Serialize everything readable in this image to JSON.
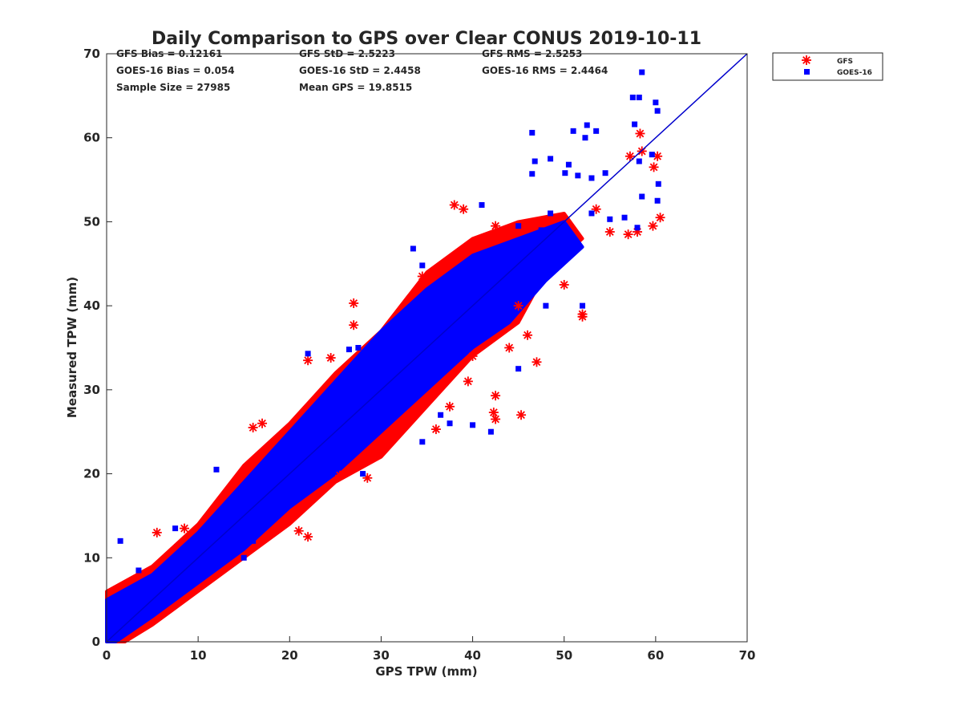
{
  "chart_data": {
    "type": "scatter",
    "title": "Daily Comparison to GPS over Clear CONUS 2019-10-11",
    "xlabel": "GPS TPW (mm)",
    "ylabel": "Measured TPW (mm)",
    "xlim": [
      0,
      70
    ],
    "ylim": [
      0,
      70
    ],
    "xticks": [
      "0",
      "10",
      "20",
      "30",
      "40",
      "50",
      "60",
      "70"
    ],
    "yticks": [
      "0",
      "10",
      "20",
      "30",
      "40",
      "50",
      "60",
      "70"
    ],
    "grid": false,
    "legend_placement": "outside-top-right",
    "stats": [
      [
        "GFS Bias = 0.12161",
        "GFS StD = 2.5223",
        "GFS RMS = 2.5253"
      ],
      [
        "GOES-16 Bias = 0.054",
        "GOES-16 StD = 2.4458",
        "GOES-16 RMS = 2.4464"
      ],
      [
        "Sample Size = 27985",
        "Mean GPS = 19.8515"
      ]
    ],
    "reference_line": {
      "name": "1:1 line",
      "x": [
        0,
        70
      ],
      "y": [
        0,
        70
      ],
      "color": "#0000cc"
    },
    "series": [
      {
        "name": "GFS",
        "marker": "asterisk",
        "color": "#ff0000",
        "cloud_envelope": [
          [
            0,
            0
          ],
          [
            0,
            6
          ],
          [
            5,
            9
          ],
          [
            10,
            14
          ],
          [
            15,
            21
          ],
          [
            20,
            26
          ],
          [
            25,
            32
          ],
          [
            30,
            37
          ],
          [
            35,
            44
          ],
          [
            40,
            48
          ],
          [
            45,
            50
          ],
          [
            50,
            51
          ],
          [
            52,
            48
          ],
          [
            48,
            44
          ],
          [
            45,
            38
          ],
          [
            40,
            34
          ],
          [
            35,
            28
          ],
          [
            30,
            22
          ],
          [
            25,
            19
          ],
          [
            20,
            14
          ],
          [
            15,
            10
          ],
          [
            10,
            6
          ],
          [
            5,
            2
          ],
          [
            2,
            0
          ]
        ],
        "points": [
          [
            27,
            40.3
          ],
          [
            27,
            37.7
          ],
          [
            45.3,
            27
          ],
          [
            52,
            39
          ],
          [
            52,
            38.7
          ],
          [
            58.3,
            60.5
          ],
          [
            57.2,
            57.8
          ],
          [
            58.5,
            58.4
          ],
          [
            60.2,
            57.8
          ],
          [
            59.8,
            56.5
          ],
          [
            60.5,
            50.5
          ],
          [
            59.7,
            49.5
          ],
          [
            57,
            48.5
          ],
          [
            58,
            48.8
          ],
          [
            55,
            48.8
          ],
          [
            53.5,
            51.5
          ],
          [
            50,
            42.5
          ],
          [
            46,
            36.5
          ],
          [
            42.5,
            26.5
          ],
          [
            42.3,
            27.3
          ],
          [
            36,
            25.3
          ],
          [
            42.5,
            29.3
          ],
          [
            37.5,
            28
          ],
          [
            39.5,
            31
          ],
          [
            22,
            12.5
          ],
          [
            21,
            13.2
          ],
          [
            25.5,
            19.8
          ],
          [
            28.5,
            19.5
          ],
          [
            16,
            25.5
          ],
          [
            17,
            26
          ],
          [
            22,
            33.5
          ],
          [
            24.5,
            33.8
          ],
          [
            38,
            52
          ],
          [
            39,
            51.5
          ],
          [
            42.5,
            49.5
          ],
          [
            34.5,
            43.5
          ],
          [
            36.5,
            44.5
          ],
          [
            5.5,
            13
          ],
          [
            8.5,
            13.5
          ],
          [
            40,
            34
          ],
          [
            45,
            40
          ],
          [
            47,
            33.3
          ],
          [
            44,
            35
          ]
        ]
      },
      {
        "name": "GOES-16",
        "marker": "square",
        "color": "#0000ff",
        "cloud_envelope": [
          [
            0,
            0
          ],
          [
            0,
            5
          ],
          [
            5,
            8
          ],
          [
            10,
            13
          ],
          [
            15,
            19
          ],
          [
            20,
            25
          ],
          [
            25,
            31
          ],
          [
            30,
            37
          ],
          [
            35,
            42
          ],
          [
            40,
            46
          ],
          [
            45,
            48
          ],
          [
            50,
            50
          ],
          [
            52,
            47
          ],
          [
            48,
            43
          ],
          [
            44,
            38
          ],
          [
            40,
            35
          ],
          [
            35,
            30
          ],
          [
            30,
            25
          ],
          [
            25,
            20
          ],
          [
            20,
            16
          ],
          [
            15,
            11
          ],
          [
            10,
            7
          ],
          [
            5,
            3
          ],
          [
            1,
            0
          ]
        ],
        "points": [
          [
            46.5,
            60.6
          ],
          [
            51,
            60.8
          ],
          [
            52.5,
            61.5
          ],
          [
            53.5,
            60.8
          ],
          [
            52.3,
            60
          ],
          [
            57.5,
            64.8
          ],
          [
            58.5,
            67.8
          ],
          [
            58.2,
            64.8
          ],
          [
            60,
            64.2
          ],
          [
            60.2,
            63.2
          ],
          [
            57.7,
            61.6
          ],
          [
            58.2,
            57.2
          ],
          [
            59.6,
            58
          ],
          [
            46.5,
            55.7
          ],
          [
            46.8,
            57.2
          ],
          [
            48.5,
            57.5
          ],
          [
            50.5,
            56.8
          ],
          [
            50.1,
            55.8
          ],
          [
            51.5,
            55.5
          ],
          [
            53,
            55.2
          ],
          [
            54.5,
            55.8
          ],
          [
            58.5,
            53
          ],
          [
            60.2,
            52.5
          ],
          [
            60.3,
            54.5
          ],
          [
            56.6,
            50.5
          ],
          [
            58,
            49.3
          ],
          [
            53,
            51
          ],
          [
            55,
            50.3
          ],
          [
            52,
            40
          ],
          [
            48,
            40
          ],
          [
            33.5,
            46.8
          ],
          [
            34.5,
            44.8
          ],
          [
            45,
            32.5
          ],
          [
            42,
            25
          ],
          [
            40,
            25.8
          ],
          [
            36.5,
            27
          ],
          [
            31.5,
            27.2
          ],
          [
            34.5,
            23.8
          ],
          [
            26.5,
            34.8
          ],
          [
            22,
            34.3
          ],
          [
            27.5,
            35
          ],
          [
            12,
            20.5
          ],
          [
            15,
            10
          ],
          [
            16,
            12
          ],
          [
            19.5,
            19.8
          ],
          [
            37.5,
            26
          ],
          [
            28,
            20
          ],
          [
            1.5,
            12
          ],
          [
            3.5,
            8.5
          ],
          [
            7.5,
            13.5
          ],
          [
            48.5,
            51
          ],
          [
            47.5,
            49
          ],
          [
            41,
            52
          ],
          [
            45,
            49.5
          ],
          [
            33,
            36
          ],
          [
            30,
            30
          ],
          [
            20,
            20
          ],
          [
            10,
            10
          ],
          [
            5,
            5
          ]
        ]
      }
    ]
  }
}
